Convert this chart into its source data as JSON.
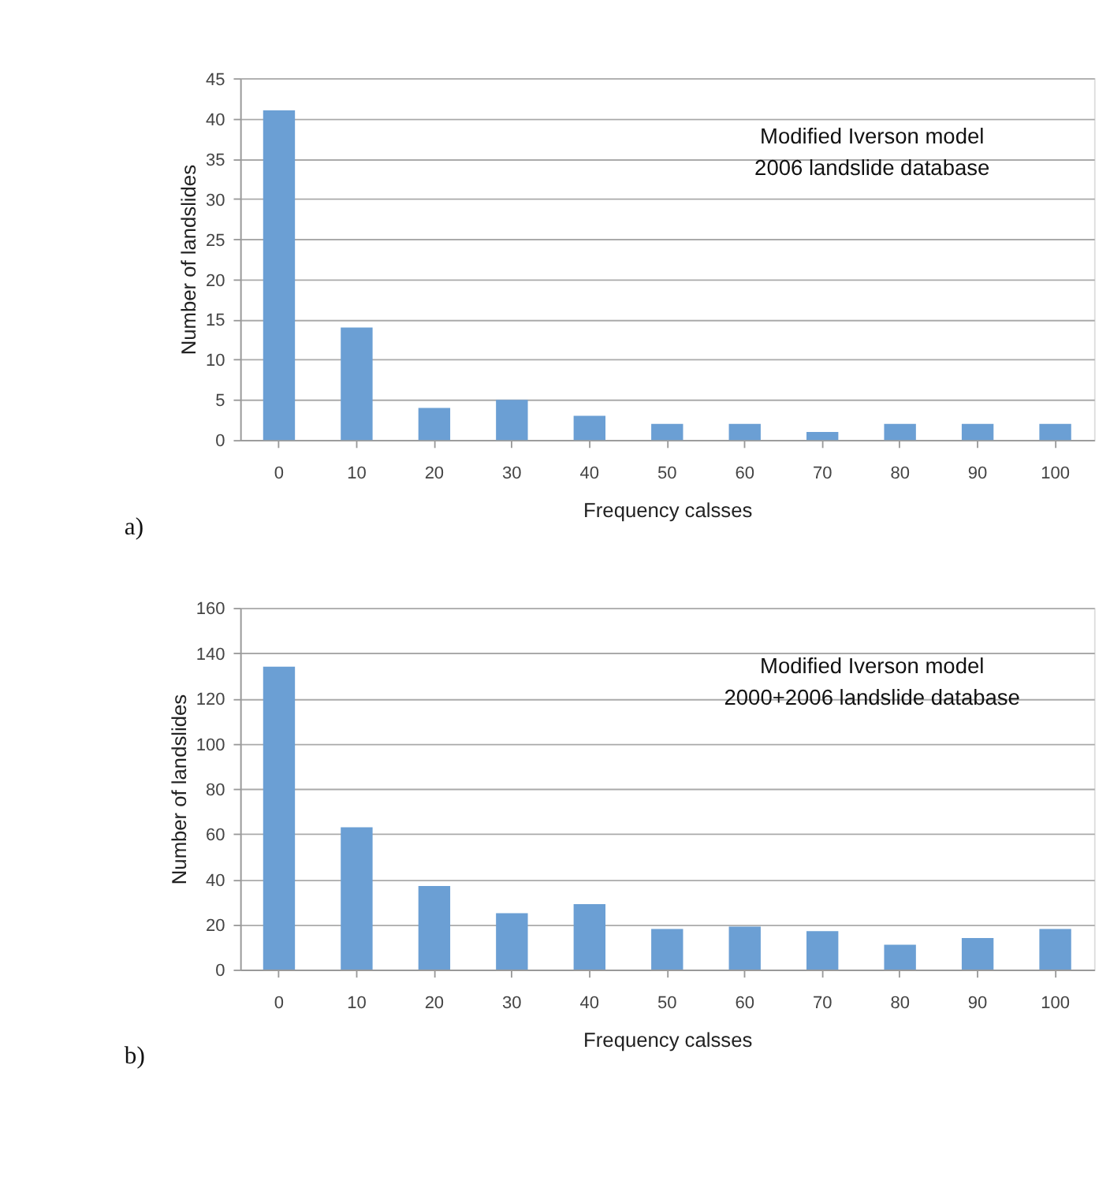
{
  "chart_data": [
    {
      "type": "bar",
      "xlabel": "Frequency calsses",
      "ylabel": "Number of landslides",
      "categories": [
        "0",
        "10",
        "20",
        "30",
        "40",
        "50",
        "60",
        "70",
        "80",
        "90",
        "100"
      ],
      "values": [
        41,
        14,
        4,
        5,
        3,
        2,
        2,
        1,
        2,
        2,
        2
      ],
      "color": "#6b9fd4",
      "ylim": [
        0,
        45
      ],
      "yticks": [
        0,
        5,
        10,
        15,
        20,
        25,
        30,
        35,
        40,
        45
      ],
      "grid": "y",
      "annotations": [
        "Modified Iverson model",
        "2006 landslide database",
        "a)"
      ]
    },
    {
      "type": "bar",
      "xlabel": "Frequency calsses",
      "ylabel": "Number of landslides",
      "categories": [
        "0",
        "10",
        "20",
        "30",
        "40",
        "50",
        "60",
        "70",
        "80",
        "90",
        "100"
      ],
      "values": [
        134,
        63,
        37,
        25,
        29,
        18,
        19,
        17,
        11,
        14,
        18
      ],
      "color": "#6b9fd4",
      "ylim": [
        0,
        160
      ],
      "yticks": [
        0,
        20,
        40,
        60,
        80,
        100,
        120,
        140,
        160
      ],
      "grid": "y",
      "annotations": [
        "Modified Iverson model",
        "2000+2006 landslide database",
        "b)"
      ]
    }
  ]
}
